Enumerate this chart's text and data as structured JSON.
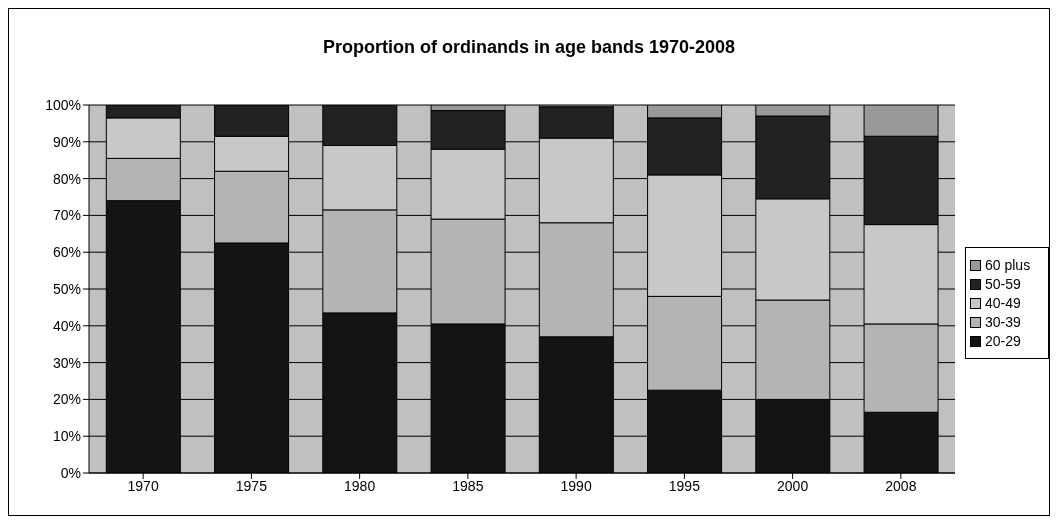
{
  "chart_data": {
    "type": "bar",
    "title": "Proportion of ordinands in age bands 1970-2008",
    "categories": [
      "1970",
      "1975",
      "1980",
      "1985",
      "1990",
      "1995",
      "2000",
      "2008"
    ],
    "stacked": true,
    "series": [
      {
        "name": "20-29",
        "color": "#141414",
        "values": [
          74,
          62.5,
          43.5,
          40.5,
          37,
          22.5,
          20,
          16.5
        ]
      },
      {
        "name": "30-39",
        "color": "#b4b4b4",
        "values": [
          11.5,
          19.5,
          28,
          28.5,
          31,
          25.5,
          27,
          24
        ]
      },
      {
        "name": "40-49",
        "color": "#c8c8c8",
        "values": [
          11,
          9.5,
          17.5,
          19,
          23,
          33,
          27.5,
          27
        ]
      },
      {
        "name": "50-59",
        "color": "#222222",
        "values": [
          3.5,
          8.5,
          11,
          10.5,
          8.5,
          15.5,
          22.5,
          24
        ]
      },
      {
        "name": "60 plus",
        "color": "#999999",
        "values": [
          0,
          0,
          0,
          1.5,
          0.5,
          3.5,
          3,
          8.5
        ]
      }
    ],
    "ylim": [
      0,
      100
    ],
    "yticks": [
      {
        "value": 0,
        "label": "0%"
      },
      {
        "value": 10,
        "label": "10%"
      },
      {
        "value": 20,
        "label": "20%"
      },
      {
        "value": 30,
        "label": "30%"
      },
      {
        "value": 40,
        "label": "40%"
      },
      {
        "value": 50,
        "label": "50%"
      },
      {
        "value": 60,
        "label": "60%"
      },
      {
        "value": 70,
        "label": "70%"
      },
      {
        "value": 80,
        "label": "80%"
      },
      {
        "value": 90,
        "label": "90%"
      },
      {
        "value": 100,
        "label": "100%"
      }
    ],
    "grid": "y",
    "legend": "right"
  }
}
